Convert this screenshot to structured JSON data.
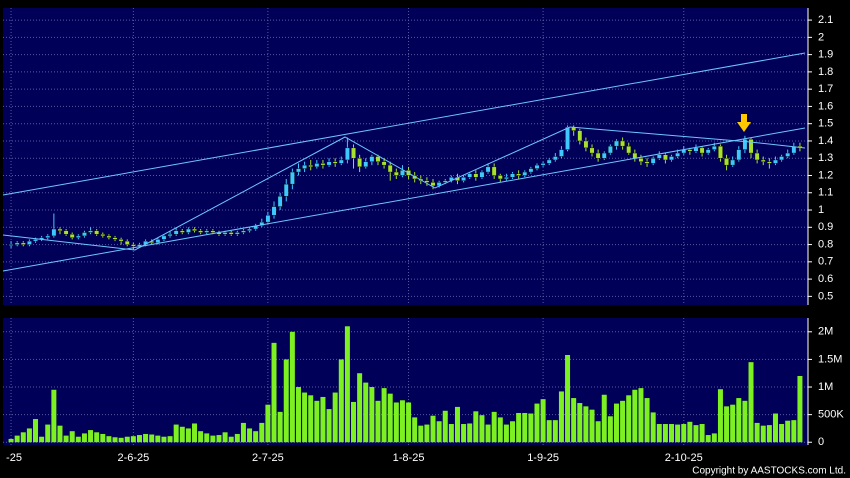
{
  "chart_data": [
    {
      "type": "candlestick",
      "up_color": "#3fc8ff",
      "down_color": "#a8e030",
      "ylim": [
        0.45,
        2.17
      ],
      "yticks": [
        0.5,
        0.6,
        0.7,
        0.8,
        0.9,
        1,
        1.1,
        1.2,
        1.3,
        1.4,
        1.5,
        1.6,
        1.7,
        1.8,
        1.9,
        2,
        2.1
      ],
      "grid": true,
      "open": [
        0.8,
        0.8,
        0.81,
        0.8,
        0.82,
        0.83,
        0.84,
        0.85,
        0.89,
        0.88,
        0.86,
        0.84,
        0.85,
        0.87,
        0.88,
        0.86,
        0.85,
        0.84,
        0.83,
        0.82,
        0.8,
        0.79,
        0.8,
        0.82,
        0.81,
        0.83,
        0.85,
        0.86,
        0.88,
        0.87,
        0.89,
        0.88,
        0.87,
        0.88,
        0.87,
        0.86,
        0.87,
        0.86,
        0.87,
        0.88,
        0.89,
        0.91,
        0.93,
        0.97,
        1.02,
        1.08,
        1.15,
        1.22,
        1.24,
        1.26,
        1.25,
        1.27,
        1.26,
        1.28,
        1.27,
        1.29,
        1.36,
        1.3,
        1.25,
        1.28,
        1.31,
        1.28,
        1.26,
        1.22,
        1.2,
        1.23,
        1.2,
        1.18,
        1.17,
        1.16,
        1.14,
        1.16,
        1.17,
        1.19,
        1.17,
        1.19,
        1.21,
        1.19,
        1.22,
        1.25,
        1.2,
        1.18,
        1.19,
        1.21,
        1.2,
        1.22,
        1.24,
        1.26,
        1.27,
        1.29,
        1.31,
        1.35,
        1.48,
        1.46,
        1.4,
        1.36,
        1.33,
        1.3,
        1.33,
        1.37,
        1.4,
        1.37,
        1.33,
        1.3,
        1.28,
        1.27,
        1.3,
        1.32,
        1.29,
        1.31,
        1.33,
        1.35,
        1.34,
        1.36,
        1.33,
        1.35,
        1.37,
        1.3,
        1.26,
        1.29,
        1.35,
        1.41,
        1.33,
        1.29,
        1.28,
        1.27,
        1.29,
        1.31,
        1.33,
        1.37
      ],
      "high": [
        0.82,
        0.82,
        0.82,
        0.83,
        0.84,
        0.85,
        0.86,
        0.98,
        0.9,
        0.89,
        0.87,
        0.86,
        0.88,
        0.9,
        0.89,
        0.87,
        0.86,
        0.85,
        0.84,
        0.83,
        0.81,
        0.81,
        0.83,
        0.83,
        0.84,
        0.86,
        0.88,
        0.9,
        0.89,
        0.9,
        0.9,
        0.89,
        0.89,
        0.89,
        0.88,
        0.88,
        0.88,
        0.88,
        0.89,
        0.9,
        0.92,
        0.95,
        0.99,
        1.05,
        1.1,
        1.18,
        1.24,
        1.27,
        1.28,
        1.29,
        1.29,
        1.29,
        1.3,
        1.3,
        1.31,
        1.42,
        1.38,
        1.32,
        1.3,
        1.32,
        1.32,
        1.3,
        1.28,
        1.24,
        1.26,
        1.25,
        1.22,
        1.2,
        1.19,
        1.18,
        1.17,
        1.18,
        1.2,
        1.21,
        1.2,
        1.22,
        1.23,
        1.23,
        1.27,
        1.27,
        1.21,
        1.21,
        1.22,
        1.23,
        1.23,
        1.25,
        1.27,
        1.28,
        1.3,
        1.33,
        1.37,
        1.49,
        1.49,
        1.47,
        1.42,
        1.38,
        1.35,
        1.34,
        1.38,
        1.41,
        1.42,
        1.39,
        1.35,
        1.32,
        1.3,
        1.31,
        1.34,
        1.33,
        1.32,
        1.35,
        1.37,
        1.36,
        1.38,
        1.37,
        1.36,
        1.39,
        1.38,
        1.32,
        1.31,
        1.37,
        1.43,
        1.42,
        1.35,
        1.31,
        1.3,
        1.31,
        1.32,
        1.35,
        1.39,
        1.39
      ],
      "low": [
        0.78,
        0.79,
        0.79,
        0.79,
        0.81,
        0.82,
        0.83,
        0.84,
        0.86,
        0.85,
        0.83,
        0.83,
        0.84,
        0.86,
        0.85,
        0.84,
        0.83,
        0.82,
        0.8,
        0.79,
        0.77,
        0.78,
        0.79,
        0.8,
        0.8,
        0.82,
        0.84,
        0.85,
        0.86,
        0.86,
        0.87,
        0.86,
        0.86,
        0.86,
        0.85,
        0.85,
        0.85,
        0.85,
        0.86,
        0.87,
        0.88,
        0.9,
        0.92,
        0.95,
        1.0,
        1.05,
        1.12,
        1.2,
        1.22,
        1.23,
        1.24,
        1.24,
        1.25,
        1.25,
        1.26,
        1.27,
        1.24,
        1.22,
        1.24,
        1.26,
        1.26,
        1.24,
        1.17,
        1.18,
        1.19,
        1.18,
        1.16,
        1.15,
        1.14,
        1.12,
        1.13,
        1.15,
        1.16,
        1.15,
        1.16,
        1.18,
        1.17,
        1.18,
        1.21,
        1.18,
        1.16,
        1.17,
        1.18,
        1.18,
        1.19,
        1.21,
        1.23,
        1.25,
        1.26,
        1.28,
        1.3,
        1.34,
        1.43,
        1.38,
        1.34,
        1.31,
        1.28,
        1.29,
        1.32,
        1.35,
        1.35,
        1.32,
        1.28,
        1.26,
        1.25,
        1.26,
        1.29,
        1.27,
        1.28,
        1.3,
        1.32,
        1.32,
        1.33,
        1.31,
        1.32,
        1.34,
        1.28,
        1.23,
        1.25,
        1.28,
        1.33,
        1.3,
        1.27,
        1.26,
        1.24,
        1.26,
        1.28,
        1.3,
        1.32,
        1.34
      ],
      "close": [
        0.8,
        0.81,
        0.8,
        0.82,
        0.83,
        0.84,
        0.85,
        0.89,
        0.88,
        0.86,
        0.84,
        0.85,
        0.87,
        0.88,
        0.86,
        0.85,
        0.84,
        0.83,
        0.82,
        0.8,
        0.79,
        0.8,
        0.82,
        0.81,
        0.83,
        0.85,
        0.86,
        0.88,
        0.87,
        0.89,
        0.88,
        0.87,
        0.88,
        0.87,
        0.86,
        0.87,
        0.86,
        0.87,
        0.88,
        0.89,
        0.91,
        0.93,
        0.97,
        1.02,
        1.08,
        1.15,
        1.22,
        1.24,
        1.26,
        1.25,
        1.27,
        1.26,
        1.28,
        1.27,
        1.29,
        1.36,
        1.3,
        1.25,
        1.28,
        1.31,
        1.28,
        1.26,
        1.22,
        1.2,
        1.23,
        1.2,
        1.18,
        1.17,
        1.16,
        1.14,
        1.16,
        1.17,
        1.19,
        1.17,
        1.19,
        1.21,
        1.19,
        1.22,
        1.25,
        1.2,
        1.18,
        1.19,
        1.21,
        1.2,
        1.22,
        1.24,
        1.26,
        1.27,
        1.29,
        1.31,
        1.35,
        1.48,
        1.46,
        1.4,
        1.36,
        1.33,
        1.3,
        1.33,
        1.37,
        1.4,
        1.37,
        1.33,
        1.3,
        1.28,
        1.27,
        1.3,
        1.32,
        1.29,
        1.31,
        1.33,
        1.35,
        1.34,
        1.36,
        1.33,
        1.35,
        1.37,
        1.3,
        1.26,
        1.29,
        1.35,
        1.41,
        1.33,
        1.29,
        1.28,
        1.27,
        1.29,
        1.31,
        1.33,
        1.37,
        1.36
      ]
    },
    {
      "type": "bar",
      "color": "#7cf020",
      "ylim": [
        -50000,
        2250000
      ],
      "yticks": [
        0,
        {
          "value": 500000,
          "label": "500K"
        },
        {
          "value": 1000000,
          "label": "1M"
        },
        {
          "value": 1500000,
          "label": "1.5M"
        },
        {
          "value": 2000000,
          "label": "2M"
        }
      ],
      "grid": true,
      "categories": [
        "-25",
        null,
        null,
        null,
        null,
        null,
        null,
        null,
        null,
        null,
        null,
        null,
        null,
        null,
        null,
        null,
        null,
        null,
        null,
        null,
        "2-6-25",
        null,
        null,
        null,
        null,
        null,
        null,
        null,
        null,
        null,
        null,
        null,
        null,
        null,
        null,
        null,
        null,
        null,
        null,
        null,
        null,
        null,
        "2-7-25",
        null,
        null,
        null,
        null,
        null,
        null,
        null,
        null,
        null,
        null,
        null,
        null,
        null,
        null,
        null,
        null,
        null,
        null,
        null,
        null,
        null,
        null,
        "1-8-25",
        null,
        null,
        null,
        null,
        null,
        null,
        null,
        null,
        null,
        null,
        null,
        null,
        null,
        null,
        null,
        null,
        null,
        null,
        null,
        null,
        null,
        "1-9-25",
        null,
        null,
        null,
        null,
        null,
        null,
        null,
        null,
        null,
        null,
        null,
        null,
        null,
        null,
        null,
        null,
        null,
        null,
        null,
        null,
        null,
        null,
        "2-10-25",
        null,
        null,
        null,
        null,
        null,
        null,
        null,
        null,
        null,
        null,
        null,
        null,
        null,
        null,
        null,
        null,
        null,
        null,
        null
      ],
      "values": [
        60000,
        120000,
        180000,
        250000,
        420000,
        100000,
        320000,
        950000,
        300000,
        120000,
        200000,
        100000,
        160000,
        220000,
        180000,
        150000,
        110000,
        90000,
        80000,
        100000,
        110000,
        130000,
        150000,
        140000,
        120000,
        100000,
        110000,
        320000,
        280000,
        250000,
        340000,
        200000,
        160000,
        120000,
        130000,
        180000,
        100000,
        150000,
        350000,
        250000,
        200000,
        350000,
        680000,
        1800000,
        550000,
        1500000,
        2000000,
        1000000,
        900000,
        850000,
        750000,
        820000,
        600000,
        900000,
        1500000,
        2100000,
        730000,
        1250000,
        1080000,
        1000000,
        750000,
        980000,
        880000,
        720000,
        760000,
        720000,
        450000,
        300000,
        320000,
        480000,
        380000,
        570000,
        330000,
        640000,
        330000,
        340000,
        560000,
        490000,
        320000,
        550000,
        450000,
        320000,
        380000,
        530000,
        530000,
        520000,
        700000,
        780000,
        400000,
        400000,
        920000,
        1580000,
        800000,
        710000,
        650000,
        590000,
        380000,
        860000,
        470000,
        700000,
        750000,
        850000,
        950000,
        980000,
        800000,
        540000,
        330000,
        330000,
        330000,
        320000,
        330000,
        370000,
        310000,
        330000,
        130000,
        160000,
        960000,
        650000,
        680000,
        800000,
        750000,
        1450000,
        350000,
        300000,
        310000,
        520000,
        330000,
        390000,
        400000,
        1200000
      ]
    }
  ],
  "copyright": "Copyright by AASTOCKS.com Ltd."
}
